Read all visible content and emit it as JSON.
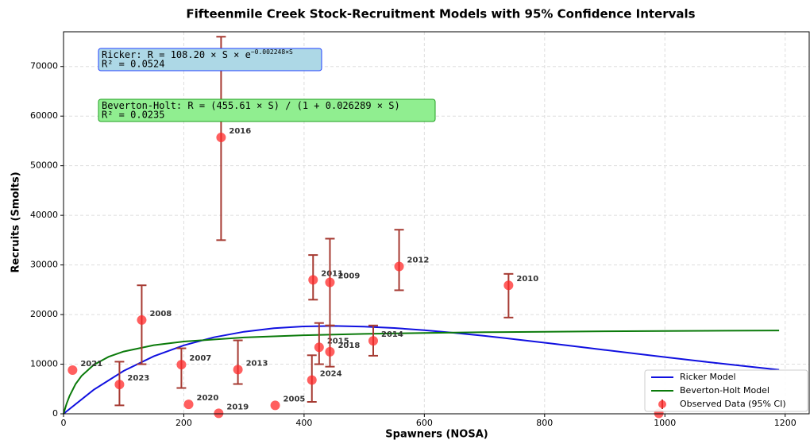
{
  "chart_data": {
    "type": "scatter",
    "title": "Fifteenmile Creek Stock-Recruitment Models with 95% Confidence Intervals",
    "x_label": "Spawners (NOSA)",
    "y_label": "Recruits (Smolts)",
    "xlim": [
      0,
      1240
    ],
    "ylim": [
      0,
      77000
    ],
    "xticks": [
      0,
      200,
      400,
      600,
      800,
      1000,
      1200
    ],
    "yticks": [
      0,
      10000,
      20000,
      30000,
      40000,
      50000,
      60000,
      70000
    ],
    "grid": true,
    "legend": "lower right",
    "points": {
      "name": "Observed Data (95% CI)",
      "color": "#ff2a2a",
      "error_color": "#a63a32",
      "labels": [
        "2021",
        "2023",
        "2008",
        "2007",
        "2020",
        "2016",
        "2019",
        "2013",
        "2005",
        "2011",
        "2024",
        "2015",
        "2009",
        "2018",
        "2014",
        "2012",
        "2010",
        null
      ],
      "x": [
        15,
        93,
        130,
        196,
        208,
        262,
        258,
        290,
        352,
        415,
        413,
        425,
        443,
        443,
        515,
        558,
        740,
        990
      ],
      "values": [
        8800,
        5900,
        18900,
        9900,
        1900,
        55700,
        100,
        8900,
        1700,
        27000,
        6800,
        13400,
        26500,
        12500,
        14700,
        29700,
        25900,
        100
      ],
      "ci_low": [
        null,
        1700,
        10000,
        5200,
        null,
        35000,
        null,
        6000,
        null,
        23000,
        2400,
        10000,
        17800,
        9500,
        11700,
        24900,
        19400,
        null
      ],
      "ci_high": [
        null,
        10500,
        25900,
        13200,
        null,
        76000,
        null,
        14800,
        null,
        32000,
        11800,
        18300,
        35300,
        17800,
        17800,
        37100,
        28200,
        null
      ]
    },
    "series": [
      {
        "name": "Ricker Model",
        "color": "#1010e0",
        "x": [
          0,
          50,
          100,
          150,
          200,
          250,
          300,
          350,
          400,
          450,
          500,
          550,
          600,
          650,
          700,
          750,
          800,
          850,
          900,
          950,
          1000,
          1050,
          1100,
          1150,
          1190
        ],
        "values": [
          0,
          4835,
          8642,
          11585,
          13805,
          15421,
          16538,
          17242,
          17611,
          17704,
          17583,
          17282,
          16853,
          16317,
          15701,
          15037,
          14334,
          13612,
          12874,
          12150,
          11426,
          10725,
          10045,
          9382,
          8872
        ]
      },
      {
        "name": "Beverton-Holt Model",
        "color": "#0a7a0a",
        "x": [
          0,
          5,
          10,
          20,
          30,
          50,
          75,
          100,
          150,
          200,
          300,
          400,
          500,
          600,
          700,
          800,
          900,
          1000,
          1100,
          1190
        ],
        "values": [
          0,
          2013,
          3608,
          5972,
          7642,
          9843,
          11499,
          12555,
          13825,
          14561,
          15381,
          15826,
          16106,
          16298,
          16438,
          16544,
          16628,
          16696,
          16752,
          16794
        ]
      }
    ],
    "annotations": [
      {
        "text": "Ricker: R = 108.20 × S × e",
        "superscript": "−0.002248×S",
        "r2": "R² = 0.0524",
        "fill": "#add8e6",
        "stroke": "#2040ff"
      },
      {
        "text": "Beverton-Holt: R = (455.61 × S) / (1 + 0.026289 × S)",
        "r2": "R² = 0.0235",
        "fill": "#90ee90",
        "stroke": "#20a020"
      }
    ]
  }
}
